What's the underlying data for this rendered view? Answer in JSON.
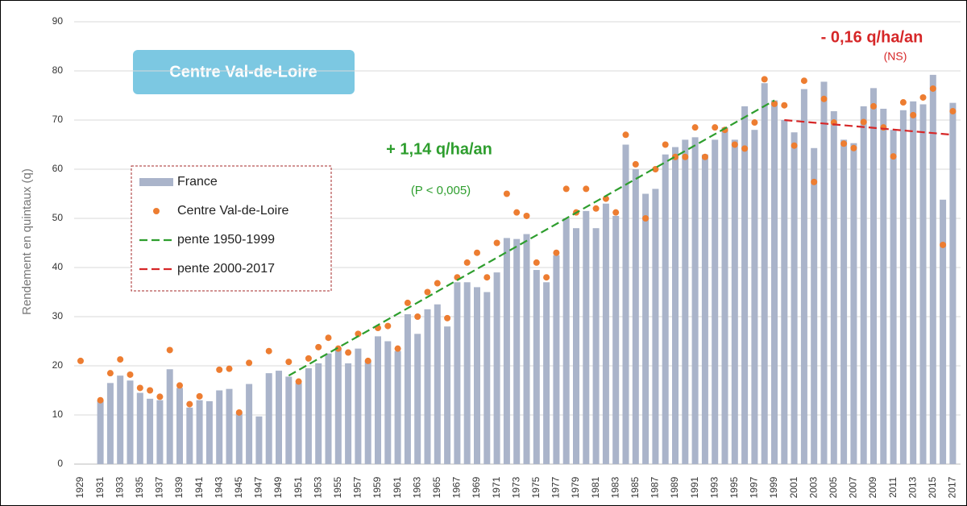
{
  "chart_data": {
    "type": "bar",
    "y_label": "Rendement en quintaux (q)",
    "box_title": "Centre Val-de-Loire",
    "annotations": [
      "+ 1,14 q/ha/an",
      "(P < 0,005)",
      "- 0,16 q/ha/an",
      "(NS)"
    ],
    "categories": [
      "1929",
      null,
      "1931",
      null,
      "1933",
      null,
      "1935",
      null,
      "1937",
      null,
      "1939",
      null,
      "1941",
      null,
      "1943",
      null,
      "1945",
      null,
      "1947",
      null,
      "1949",
      null,
      "1951",
      null,
      "1953",
      null,
      "1955",
      null,
      "1957",
      null,
      "1959",
      null,
      "1961",
      null,
      "1963",
      null,
      "1965",
      null,
      "1967",
      null,
      "1969",
      null,
      "1971",
      null,
      "1973",
      null,
      "1975",
      null,
      "1977",
      null,
      "1979",
      null,
      "1981",
      null,
      "1983",
      null,
      "1985",
      null,
      "1987",
      null,
      "1989",
      null,
      "1991",
      null,
      "1993",
      null,
      "1995",
      null,
      "1997",
      null,
      "1999",
      null,
      "2001",
      null,
      "2003",
      null,
      "2005",
      null,
      "2007",
      null,
      "2009",
      null,
      "2011",
      null,
      "2013",
      null,
      "2015",
      null,
      "2017"
    ],
    "xlim": [
      1929,
      2017
    ],
    "ylim": [
      0,
      90
    ],
    "yticks": [
      0,
      10,
      20,
      30,
      40,
      50,
      60,
      70,
      80,
      90
    ],
    "grid": true,
    "series": [
      {
        "name": "France",
        "type": "bar",
        "color": "#aab4ca",
        "values": [
          null,
          null,
          13,
          16.5,
          18,
          17,
          14.5,
          13.3,
          13,
          19.3,
          15.5,
          11.5,
          13,
          12.8,
          15,
          15.3,
          10.5,
          16.3,
          9.7,
          18.5,
          19,
          17.8,
          16.5,
          19.5,
          20.5,
          22.5,
          23.5,
          20.5,
          23.5,
          21,
          26,
          25,
          23,
          30.5,
          26.5,
          31.5,
          32.5,
          28,
          37,
          37,
          36,
          35,
          39,
          46,
          45.8,
          46.8,
          39.5,
          37,
          42.5,
          50,
          48,
          51.5,
          48,
          53,
          50.5,
          65,
          60,
          55,
          56,
          63,
          64.5,
          66,
          66.5,
          63,
          66,
          68.5,
          66,
          72.8,
          68,
          77.5,
          74,
          70,
          67.5,
          76.3,
          64.3,
          77.8,
          71.8,
          66,
          65.3,
          72.8,
          76.5,
          72.3,
          68,
          72,
          73.8,
          73.2,
          79.2,
          53.8,
          73.5
        ]
      },
      {
        "name": "Centre Val-de-Loire",
        "type": "dot",
        "color": "#ed7d31",
        "values": [
          21,
          null,
          13,
          18.5,
          21.3,
          18.2,
          15.5,
          15,
          13.7,
          23.2,
          16,
          12.2,
          13.8,
          null,
          19.2,
          19.4,
          10.5,
          20.6,
          null,
          23,
          null,
          20.8,
          16.8,
          21.5,
          23.8,
          25.7,
          23.5,
          22.7,
          26.5,
          21,
          27.7,
          28.1,
          23.5,
          32.8,
          30,
          35,
          36.8,
          29.7,
          38,
          41,
          43,
          38,
          45,
          55,
          51.2,
          50.5,
          41,
          38,
          43,
          56,
          51.2,
          56,
          52,
          54,
          51.2,
          67,
          61,
          50,
          60,
          65,
          62.5,
          62.5,
          68.5,
          62.5,
          68.5,
          68,
          65,
          64.2,
          69.5,
          78.3,
          73.3,
          73,
          64.8,
          78,
          57.4,
          74.3,
          69.5,
          65.2,
          64.3,
          69.6,
          72.8,
          68.5,
          62.6,
          73.6,
          71,
          74.6,
          76.4,
          44.6,
          71.8
        ]
      },
      {
        "name": "pente 1950-1999",
        "type": "trend",
        "color": "#2e9e2e",
        "x": [
          1950,
          1999
        ],
        "values": [
          18,
          74
        ]
      },
      {
        "name": "pente 2000-2017",
        "type": "trend",
        "color": "#d62728",
        "x": [
          2000,
          2017
        ],
        "values": [
          70,
          67
        ]
      }
    ]
  }
}
